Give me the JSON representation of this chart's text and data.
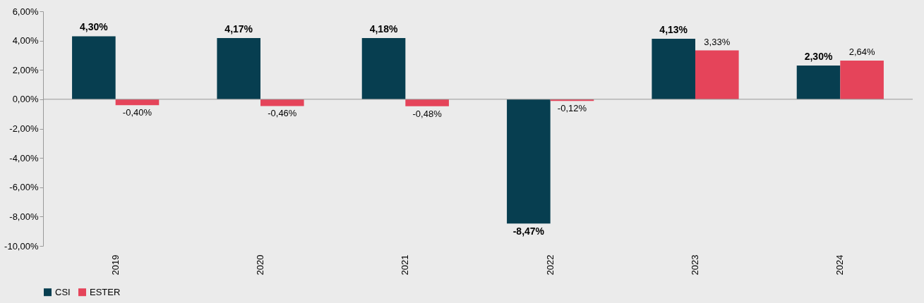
{
  "chart_data": {
    "type": "bar",
    "categories": [
      "2019",
      "2020",
      "2021",
      "2022",
      "2023",
      "2024"
    ],
    "series": [
      {
        "name": "CSI",
        "color": "#073e50",
        "values": [
          4.3,
          4.17,
          4.18,
          -8.47,
          4.13,
          2.3
        ],
        "value_labels": [
          "4,30%",
          "4,17%",
          "4,18%",
          "-8,47%",
          "4,13%",
          "2,30%"
        ]
      },
      {
        "name": "ESTER",
        "color": "#e5445a",
        "values": [
          -0.4,
          -0.46,
          -0.48,
          -0.12,
          3.33,
          2.64
        ],
        "value_labels": [
          "-0,40%",
          "-0,46%",
          "-0,48%",
          "-0,12%",
          "3,33%",
          "2,64%"
        ]
      }
    ],
    "ylim": [
      -10,
      6
    ],
    "yticks": [
      {
        "value": -10,
        "label": "-10,00%"
      },
      {
        "value": -8,
        "label": "-8,00%"
      },
      {
        "value": -6,
        "label": "-6,00%"
      },
      {
        "value": -4,
        "label": "-4,00%"
      },
      {
        "value": -2,
        "label": "-2,00%"
      },
      {
        "value": 0,
        "label": "0,00%"
      },
      {
        "value": 2,
        "label": "2,00%"
      },
      {
        "value": 4,
        "label": "4,00%"
      },
      {
        "value": 6,
        "label": "6,00%"
      }
    ],
    "legend": "bottom"
  }
}
